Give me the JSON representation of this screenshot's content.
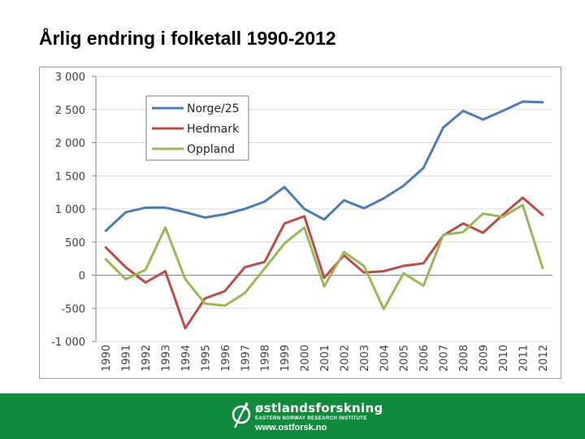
{
  "slide": {
    "title": "Årlig endring i folketall 1990-2012"
  },
  "footer": {
    "brand_name": "østlandsforskning",
    "subtitle": "EASTERN NORWAY RESEARCH INSTITUTE",
    "url": "www.ostforsk.no",
    "background_color": "#108a3c",
    "logo_icon": "circle-leaf-logo-icon"
  },
  "chart_data": {
    "type": "line",
    "title": "",
    "xlabel": "",
    "ylabel": "",
    "ylim": [
      -1000,
      3000
    ],
    "y_ticks": [
      -1000,
      -500,
      0,
      500,
      1000,
      1500,
      2000,
      2500,
      3000
    ],
    "y_tick_labels": [
      "-1 000",
      "-500",
      "0",
      "500",
      "1 000",
      "1 500",
      "2 000",
      "2 500",
      "3 000"
    ],
    "grid": true,
    "legend_position": "top-left",
    "categories": [
      "1990",
      "1991",
      "1992",
      "1993",
      "1994",
      "1995",
      "1996",
      "1997",
      "1998",
      "1999",
      "2000",
      "2001",
      "2002",
      "2003",
      "2004",
      "2005",
      "2006",
      "2007",
      "2008",
      "2009",
      "2010",
      "2011",
      "2012"
    ],
    "series": [
      {
        "name": "Norge/25",
        "color": "#4a7ebb",
        "values": [
          670,
          950,
          1020,
          1020,
          950,
          870,
          920,
          1000,
          1110,
          1330,
          1000,
          840,
          1130,
          1010,
          1160,
          1350,
          1620,
          2230,
          2480,
          2350,
          2480,
          2620,
          2610
        ]
      },
      {
        "name": "Hedmark",
        "color": "#be4b48",
        "values": [
          420,
          120,
          -110,
          60,
          -800,
          -350,
          -240,
          120,
          200,
          780,
          890,
          -40,
          300,
          40,
          60,
          140,
          180,
          600,
          780,
          640,
          910,
          1170,
          910
        ]
      },
      {
        "name": "Oppland",
        "color": "#98b954",
        "values": [
          240,
          -60,
          80,
          720,
          -60,
          -430,
          -460,
          -270,
          100,
          480,
          720,
          -170,
          350,
          140,
          -510,
          30,
          -160,
          610,
          650,
          930,
          880,
          1060,
          110
        ]
      }
    ]
  }
}
